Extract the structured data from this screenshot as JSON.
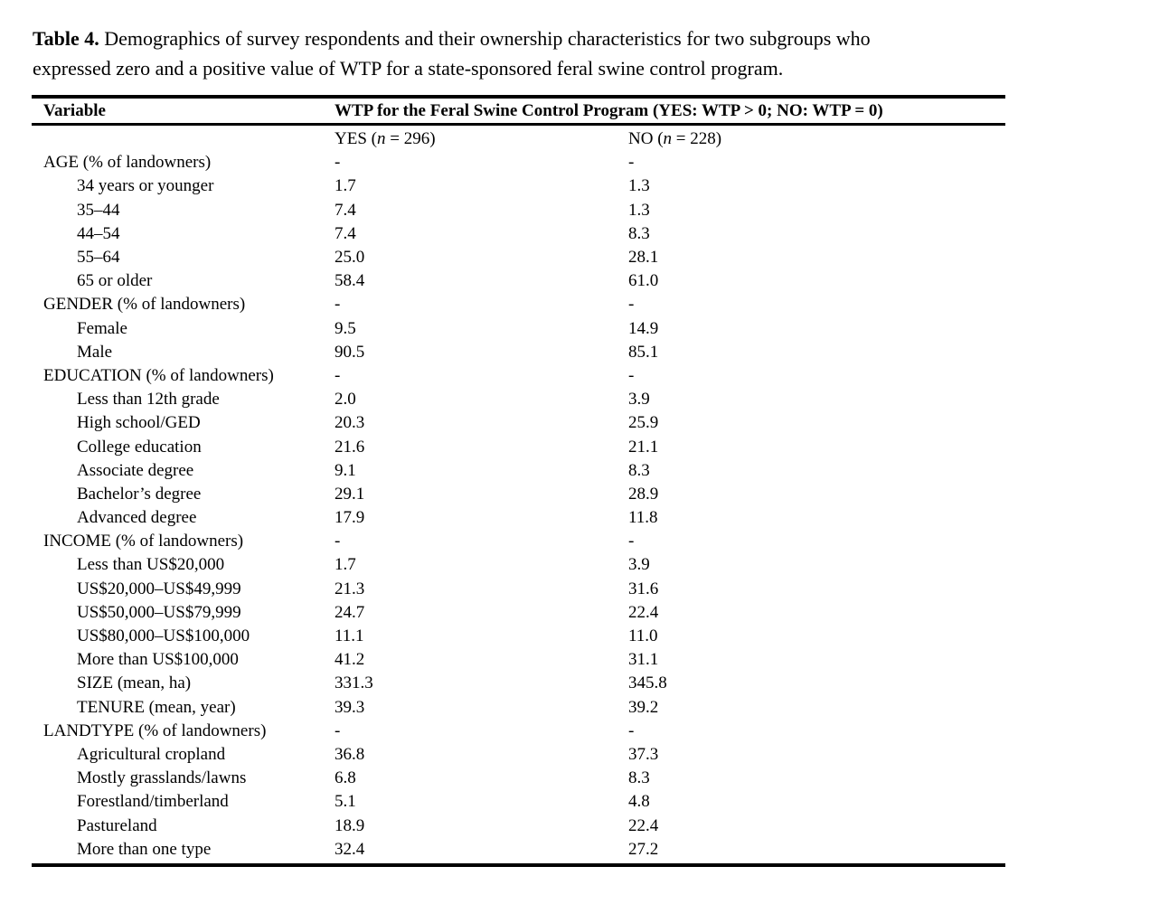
{
  "caption": {
    "label": "Table 4.",
    "line1": "Demographics of survey respondents and their ownership characteristics for two subgroups who",
    "line2": "expressed zero and a positive value of WTP for a state-sponsored feral swine control program."
  },
  "colors": {
    "text": "#000000",
    "background": "#ffffff",
    "rule": "#000000"
  },
  "table": {
    "variable_header": "Variable",
    "group_header": "WTP for the Feral Swine Control Program (YES: WTP > 0; NO: WTP = 0)",
    "subheaders": {
      "yes": {
        "pre": "YES (",
        "n": "n",
        "post": " = 296)"
      },
      "no": {
        "pre": "NO (",
        "n": "n",
        "post": " = 228)"
      }
    },
    "rows": [
      {
        "label": "AGE (% of landowners)",
        "indent": false,
        "yes": "-",
        "no": "-"
      },
      {
        "label": "34 years or younger",
        "indent": true,
        "yes": "1.7",
        "no": "1.3"
      },
      {
        "label": "35–44",
        "indent": true,
        "yes": "7.4",
        "no": "1.3"
      },
      {
        "label": "44–54",
        "indent": true,
        "yes": "7.4",
        "no": "8.3"
      },
      {
        "label": "55–64",
        "indent": true,
        "yes": "25.0",
        "no": "28.1"
      },
      {
        "label": "65 or older",
        "indent": true,
        "yes": "58.4",
        "no": "61.0"
      },
      {
        "label": "GENDER (% of landowners)",
        "indent": false,
        "yes": "-",
        "no": "-"
      },
      {
        "label": "Female",
        "indent": true,
        "yes": "9.5",
        "no": "14.9"
      },
      {
        "label": "Male",
        "indent": true,
        "yes": "90.5",
        "no": "85.1"
      },
      {
        "label": "EDUCATION (% of landowners)",
        "indent": false,
        "yes": "-",
        "no": "-"
      },
      {
        "label": "Less than 12th grade",
        "indent": true,
        "yes": "2.0",
        "no": "3.9"
      },
      {
        "label": "High school/GED",
        "indent": true,
        "yes": "20.3",
        "no": "25.9"
      },
      {
        "label": "College education",
        "indent": true,
        "yes": "21.6",
        "no": "21.1"
      },
      {
        "label": "Associate degree",
        "indent": true,
        "yes": "9.1",
        "no": "8.3"
      },
      {
        "label": "Bachelor’s degree",
        "indent": true,
        "yes": "29.1",
        "no": "28.9"
      },
      {
        "label": "Advanced degree",
        "indent": true,
        "yes": "17.9",
        "no": "11.8"
      },
      {
        "label": "INCOME (% of landowners)",
        "indent": false,
        "yes": "-",
        "no": "-"
      },
      {
        "label": "Less than US$20,000",
        "indent": true,
        "yes": "1.7",
        "no": "3.9"
      },
      {
        "label": "US$20,000–US$49,999",
        "indent": true,
        "yes": "21.3",
        "no": "31.6"
      },
      {
        "label": "US$50,000–US$79,999",
        "indent": true,
        "yes": "24.7",
        "no": "22.4"
      },
      {
        "label": "US$80,000–US$100,000",
        "indent": true,
        "yes": "11.1",
        "no": "11.0"
      },
      {
        "label": "More than US$100,000",
        "indent": true,
        "yes": "41.2",
        "no": "31.1"
      },
      {
        "label": "SIZE (mean, ha)",
        "indent": true,
        "yes": "331.3",
        "no": "345.8"
      },
      {
        "label": "TENURE (mean, year)",
        "indent": true,
        "yes": "39.3",
        "no": "39.2"
      },
      {
        "label": "LANDTYPE (% of landowners)",
        "indent": false,
        "yes": "-",
        "no": "-"
      },
      {
        "label": "Agricultural cropland",
        "indent": true,
        "yes": "36.8",
        "no": "37.3"
      },
      {
        "label": "Mostly grasslands/lawns",
        "indent": true,
        "yes": "6.8",
        "no": "8.3"
      },
      {
        "label": "Forestland/timberland",
        "indent": true,
        "yes": "5.1",
        "no": "4.8"
      },
      {
        "label": "Pastureland",
        "indent": true,
        "yes": "18.9",
        "no": "22.4"
      },
      {
        "label": "More than one type",
        "indent": true,
        "yes": "32.4",
        "no": "27.2"
      }
    ]
  }
}
